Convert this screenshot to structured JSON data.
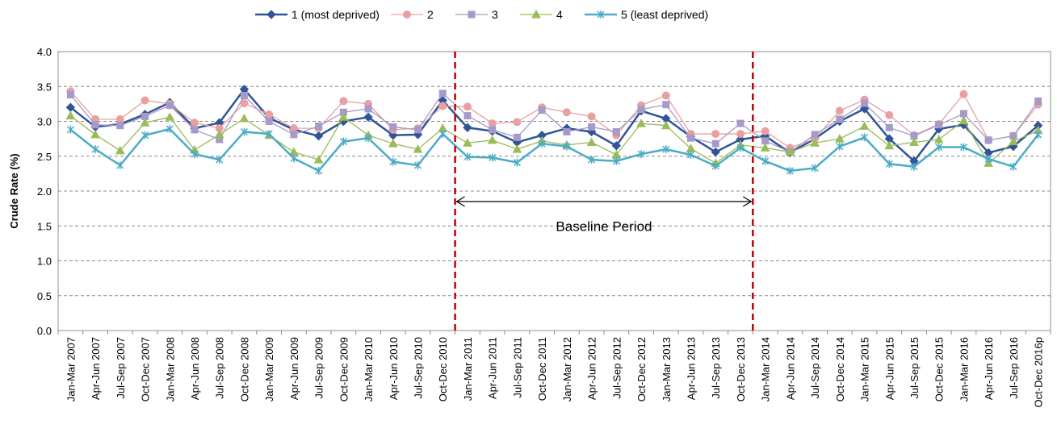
{
  "chart_data": {
    "type": "line",
    "ylabel": "Crude Rate (%)",
    "ylim": [
      0,
      4
    ],
    "yticks": [
      "0.0",
      "0.5",
      "1.0",
      "1.5",
      "2.0",
      "2.5",
      "3.0",
      "3.5",
      "4.0"
    ],
    "grid": "horizontal-dashed",
    "legend_position": "top",
    "categories": [
      "Jan-Mar 2007",
      "Apr-Jun 2007",
      "Jul-Sep 2007",
      "Oct-Dec 2007",
      "Jan-Mar 2008",
      "Apr-Jun 2008",
      "Jul-Sep 2008",
      "Oct-Dec 2008",
      "Jan-Mar 2009",
      "Apr-Jun 2009",
      "Jul-Sep 2009",
      "Oct-Dec 2009",
      "Jan-Mar 2010",
      "Apr-Jun 2010",
      "Jul-Sep 2010",
      "Oct-Dec 2010",
      "Jan-Mar 2011",
      "Apr-Jun 2011",
      "Jul-Sep 2011",
      "Oct-Dec 2011",
      "Jan-Mar 2012",
      "Apr-Jun 2012",
      "Jul-Sep 2012",
      "Oct-Dec 2012",
      "Jan-Mar 2013",
      "Apr-Jun 2013",
      "Jul-Sep  2013",
      "Oct-Dec 2013",
      "Jan-Mar 2014",
      "Apr-Jun 2014",
      "Jul-Sep 2014",
      "Oct-Dec 2014",
      "Jan-Mar 2015",
      "Apr-Jun 2015",
      "Jul-Sep 2015",
      "Oct-Dec 2015",
      "Jan-Mar 2016",
      "Apr-Jun 2016",
      "Jul-Sep 2016",
      "Oct-Dec 2016p"
    ],
    "series": [
      {
        "name": "1 (most deprived)",
        "color": "#2F5597",
        "marker": "diamond",
        "values": [
          3.2,
          2.92,
          2.96,
          3.1,
          3.27,
          2.9,
          2.98,
          3.46,
          3.05,
          2.88,
          2.79,
          3.0,
          3.06,
          2.8,
          2.81,
          3.3,
          2.91,
          2.86,
          2.7,
          2.8,
          2.9,
          2.85,
          2.65,
          3.15,
          3.04,
          2.78,
          2.56,
          2.74,
          2.79,
          2.55,
          2.75,
          3.0,
          3.18,
          2.75,
          2.43,
          2.89,
          2.95,
          2.55,
          2.64,
          2.94
        ]
      },
      {
        "name": "2",
        "color": "#E8A0A0",
        "marker": "circle",
        "values": [
          3.43,
          3.03,
          3.03,
          3.3,
          3.25,
          2.98,
          2.9,
          3.26,
          3.1,
          2.9,
          2.9,
          3.29,
          3.25,
          2.88,
          2.9,
          3.22,
          3.21,
          2.97,
          2.99,
          3.2,
          3.13,
          3.07,
          2.8,
          3.23,
          3.37,
          2.82,
          2.82,
          2.82,
          2.86,
          2.62,
          2.75,
          3.15,
          3.31,
          3.09,
          2.8,
          2.96,
          3.39,
          2.73,
          2.79,
          3.24
        ]
      },
      {
        "name": "3",
        "color": "#A59ACA",
        "marker": "square",
        "values": [
          3.38,
          2.95,
          2.94,
          3.07,
          3.23,
          2.88,
          2.74,
          3.37,
          3.0,
          2.81,
          2.93,
          3.13,
          3.18,
          2.92,
          2.88,
          3.4,
          3.08,
          2.88,
          2.77,
          3.16,
          2.85,
          2.92,
          2.85,
          3.17,
          3.24,
          2.76,
          2.68,
          2.97,
          2.72,
          2.56,
          2.81,
          3.03,
          3.26,
          2.91,
          2.79,
          2.95,
          3.11,
          2.73,
          2.79,
          3.29
        ]
      },
      {
        "name": "4",
        "color": "#9BBB59",
        "marker": "triangle",
        "values": [
          3.08,
          2.81,
          2.58,
          2.98,
          3.06,
          2.59,
          2.81,
          3.04,
          2.8,
          2.56,
          2.45,
          3.06,
          2.8,
          2.68,
          2.6,
          2.9,
          2.69,
          2.73,
          2.6,
          2.72,
          2.66,
          2.7,
          2.52,
          2.97,
          2.94,
          2.61,
          2.4,
          2.66,
          2.62,
          2.56,
          2.69,
          2.75,
          2.93,
          2.65,
          2.7,
          2.74,
          3.01,
          2.4,
          2.71,
          2.87
        ]
      },
      {
        "name": "5 (least deprived)",
        "color": "#4BACC6",
        "marker": "star",
        "values": [
          2.88,
          2.6,
          2.37,
          2.8,
          2.89,
          2.53,
          2.45,
          2.85,
          2.82,
          2.47,
          2.29,
          2.71,
          2.76,
          2.42,
          2.37,
          2.82,
          2.49,
          2.48,
          2.41,
          2.68,
          2.64,
          2.45,
          2.43,
          2.53,
          2.6,
          2.52,
          2.36,
          2.62,
          2.43,
          2.29,
          2.33,
          2.64,
          2.77,
          2.39,
          2.35,
          2.63,
          2.63,
          2.46,
          2.35,
          2.81
        ]
      }
    ],
    "annotations": {
      "baseline_label": "Baseline Period",
      "baseline_start": "Jan-Mar 2011",
      "baseline_end": "Oct-Dec 2013",
      "baseline_arrow_y": 1.85,
      "baseline_text_y": 1.5,
      "vline_color": "#C00000"
    }
  }
}
